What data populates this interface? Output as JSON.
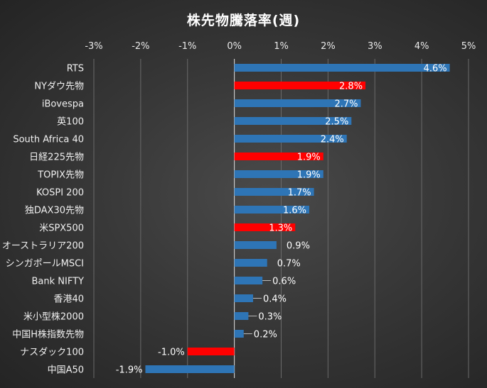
{
  "chart_data": {
    "type": "bar",
    "orientation": "horizontal",
    "title": "株先物騰落率(週)",
    "xlim": [
      -3,
      5
    ],
    "x_tick_labels": [
      "-3%",
      "-2%",
      "-1%",
      "0%",
      "1%",
      "2%",
      "3%",
      "4%",
      "5%"
    ],
    "grid": true,
    "legend": "none",
    "default_color": "#2e75b6",
    "highlight_color": "#ff0000",
    "categories": [
      "RTS",
      "NYダウ先物",
      "iBovespa",
      "英100",
      "South Africa 40",
      "日経225先物",
      "TOPIX先物",
      "KOSPI 200",
      "独DAX30先物",
      "米SPX500",
      "オーストラリア200",
      "シンガポールMSCI",
      "Bank NIFTY",
      "香港40",
      "米小型株2000",
      "中国H株指数先物",
      "ナスダック100",
      "中国A50"
    ],
    "values": [
      4.6,
      2.8,
      2.7,
      2.5,
      2.4,
      1.9,
      1.9,
      1.7,
      1.6,
      1.3,
      0.9,
      0.7,
      0.6,
      0.4,
      0.3,
      0.2,
      -1.0,
      -1.9
    ],
    "data_labels": [
      "4.6%",
      "2.8%",
      "2.7%",
      "2.5%",
      "2.4%",
      "1.9%",
      "1.9%",
      "1.7%",
      "1.6%",
      "1.3%",
      "0.9%",
      "0.7%",
      "0.6%",
      "0.4%",
      "0.3%",
      "0.2%",
      "-1.0%",
      "-1.9%"
    ],
    "highlighted": [
      "NYダウ先物",
      "日経225先物",
      "米SPX500",
      "ナスダック100"
    ]
  }
}
